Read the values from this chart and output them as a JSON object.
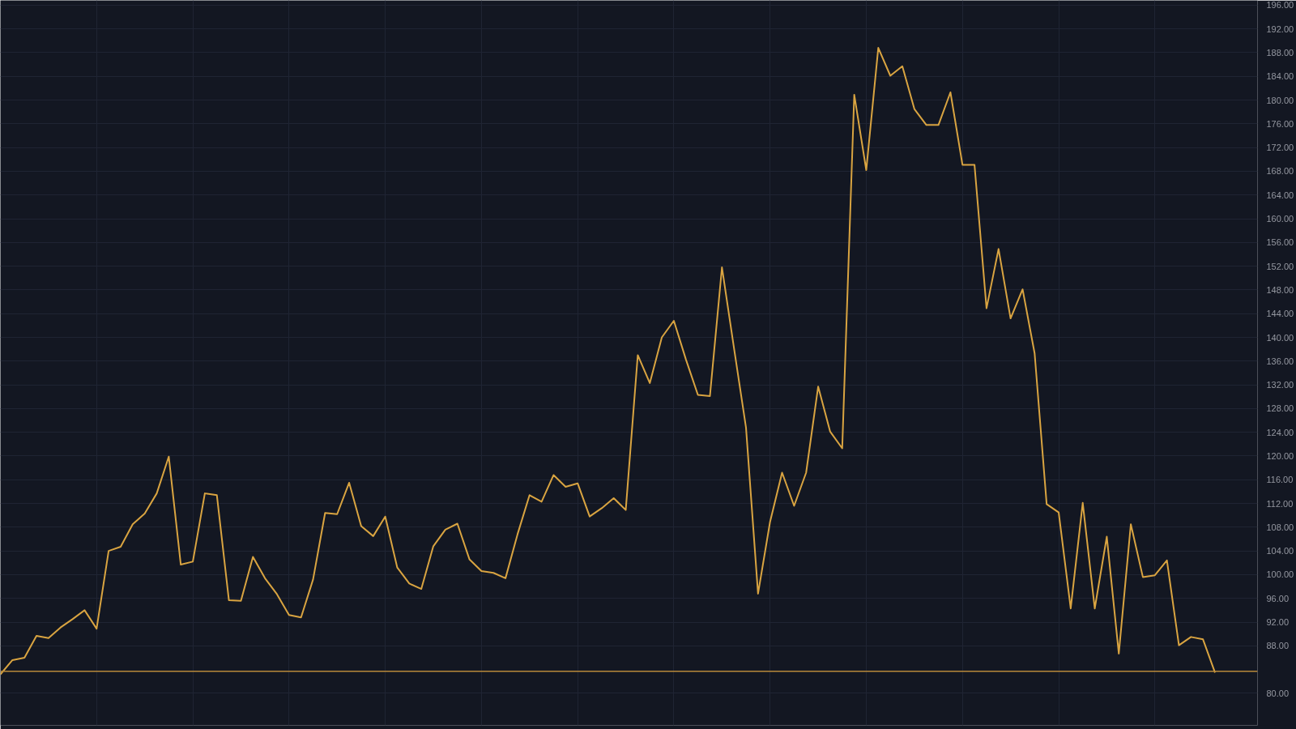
{
  "chart_data": {
    "type": "line",
    "categories": [
      null,
      null,
      null,
      null,
      null,
      null,
      null,
      null,
      null,
      null,
      null,
      null,
      null,
      null,
      null,
      null,
      null,
      null,
      null,
      null,
      null,
      null,
      null,
      null,
      null,
      null,
      null,
      null,
      null,
      null,
      null,
      null,
      null,
      null,
      null,
      null,
      null,
      null,
      null,
      null,
      null,
      null,
      null,
      null,
      null,
      null,
      null,
      null,
      null,
      null,
      null,
      null,
      null,
      null,
      null,
      null,
      null,
      null,
      null,
      null,
      null,
      null,
      null,
      null,
      null,
      null,
      null,
      null,
      null,
      null,
      null,
      null,
      null,
      null,
      null,
      null,
      null,
      null,
      null,
      null,
      null,
      null,
      null,
      null,
      null,
      null,
      null,
      null,
      null,
      null,
      null,
      null,
      null,
      null,
      null,
      null,
      null,
      null,
      null,
      null,
      null,
      null
    ],
    "series": [
      {
        "color": "#d9a441",
        "values": [
          83.2,
          85.6,
          86.0,
          89.7,
          89.3,
          91.1,
          92.5,
          94.0,
          90.9,
          104.0,
          104.7,
          108.5,
          110.3,
          113.7,
          119.9,
          101.7,
          102.2,
          113.7,
          113.4,
          95.7,
          95.6,
          103.0,
          99.4,
          96.7,
          93.2,
          92.8,
          99.2,
          110.4,
          110.2,
          115.5,
          108.2,
          106.5,
          109.8,
          101.2,
          98.5,
          97.6,
          104.8,
          107.6,
          108.6,
          102.6,
          100.6,
          100.3,
          99.4,
          106.8,
          113.4,
          112.3,
          116.8,
          114.8,
          115.4,
          109.8,
          111.2,
          112.9,
          110.9,
          137.0,
          132.3,
          140.0,
          142.8,
          136.3,
          130.3,
          130.1,
          151.8,
          138.2,
          124.8,
          96.8,
          108.9,
          117.2,
          111.6,
          117.2,
          131.7,
          124.1,
          121.3,
          180.9,
          168.2,
          188.8,
          184.1,
          185.7,
          178.5,
          175.8,
          175.8,
          181.3,
          169.1,
          169.1,
          144.9,
          154.9,
          143.2,
          148.1,
          137.3,
          111.9,
          110.5,
          94.3,
          112.1,
          94.3,
          106.4,
          86.7,
          108.5,
          99.6,
          99.9,
          102.4,
          88.1,
          89.5,
          89.1,
          83.5
        ]
      }
    ],
    "ylim": [
      74.6,
      196.8
    ],
    "yticks": [
      {
        "value": 80,
        "label": "80.00"
      },
      {
        "value": 88,
        "label": "88.00"
      },
      {
        "value": 92,
        "label": "92.00"
      },
      {
        "value": 96,
        "label": "96.00"
      },
      {
        "value": 100,
        "label": "100.00"
      },
      {
        "value": 104,
        "label": "104.00"
      },
      {
        "value": 108,
        "label": "108.00"
      },
      {
        "value": 112,
        "label": "112.00"
      },
      {
        "value": 116,
        "label": "116.00"
      },
      {
        "value": 120,
        "label": "120.00"
      },
      {
        "value": 124,
        "label": "124.00"
      },
      {
        "value": 128,
        "label": "128.00"
      },
      {
        "value": 132,
        "label": "132.00"
      },
      {
        "value": 136,
        "label": "136.00"
      },
      {
        "value": 140,
        "label": "140.00"
      },
      {
        "value": 144,
        "label": "144.00"
      },
      {
        "value": 148,
        "label": "148.00"
      },
      {
        "value": 152,
        "label": "152.00"
      },
      {
        "value": 156,
        "label": "156.00"
      },
      {
        "value": 160,
        "label": "160.00"
      },
      {
        "value": 164,
        "label": "164.00"
      },
      {
        "value": 168,
        "label": "168.00"
      },
      {
        "value": 172,
        "label": "172.00"
      },
      {
        "value": 176,
        "label": "176.00"
      },
      {
        "value": 180,
        "label": "180.00"
      },
      {
        "value": 184,
        "label": "184.00"
      },
      {
        "value": 188,
        "label": "188.00"
      },
      {
        "value": 192,
        "label": "192.00"
      },
      {
        "value": 196,
        "label": "196.00"
      }
    ],
    "ref_lines": [
      {
        "axis": "y",
        "value": 83.7,
        "color": "#b8893a"
      }
    ],
    "grid": true,
    "tick_labels": "y",
    "marker": "none",
    "line_style": "solid"
  }
}
